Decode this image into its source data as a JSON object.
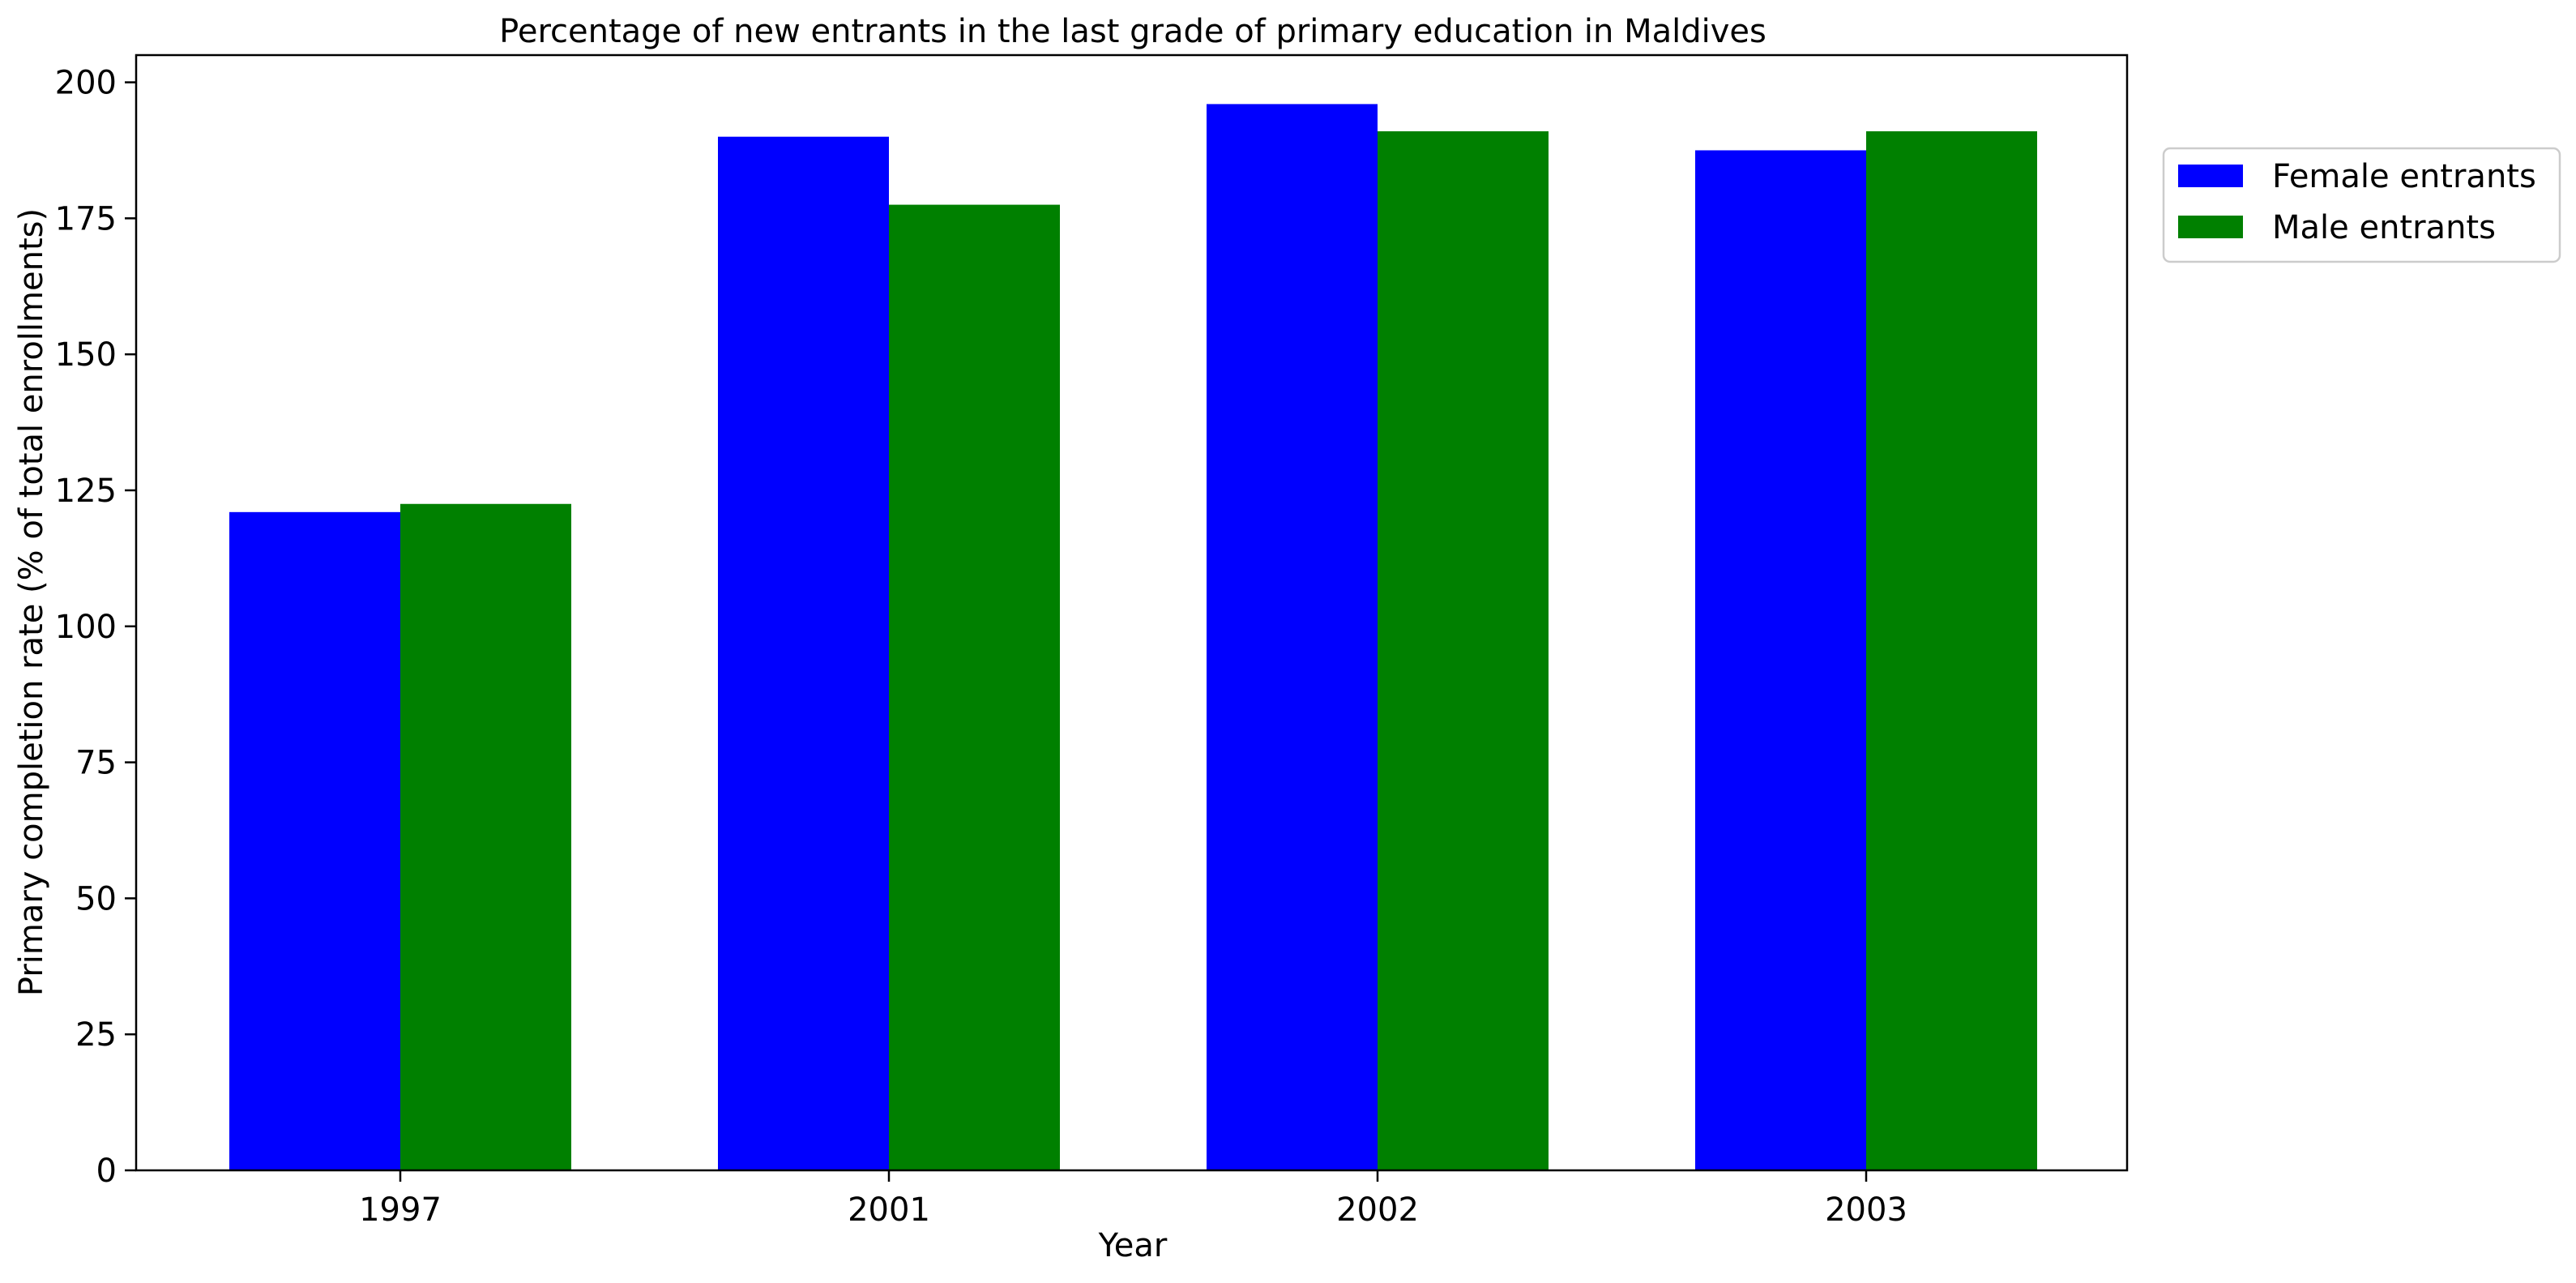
{
  "chart_data": {
    "type": "bar",
    "title": "Percentage of new entrants in the last grade of primary education in Maldives",
    "xlabel": "Year",
    "ylabel": "Primary completion rate (% of total enrollments)",
    "categories": [
      "1997",
      "2001",
      "2002",
      "2003"
    ],
    "series": [
      {
        "name": "Female entrants",
        "color": "#0000ff",
        "values": [
          121,
          190,
          196,
          187.5
        ]
      },
      {
        "name": "Male entrants",
        "color": "#008000",
        "values": [
          122.5,
          177.5,
          191,
          191
        ]
      }
    ],
    "ylim": [
      0,
      205
    ],
    "yticks": [
      "0",
      "25",
      "50",
      "75",
      "100",
      "125",
      "150",
      "175",
      "200"
    ],
    "grid": false,
    "legend_position": "outside-top-right"
  }
}
